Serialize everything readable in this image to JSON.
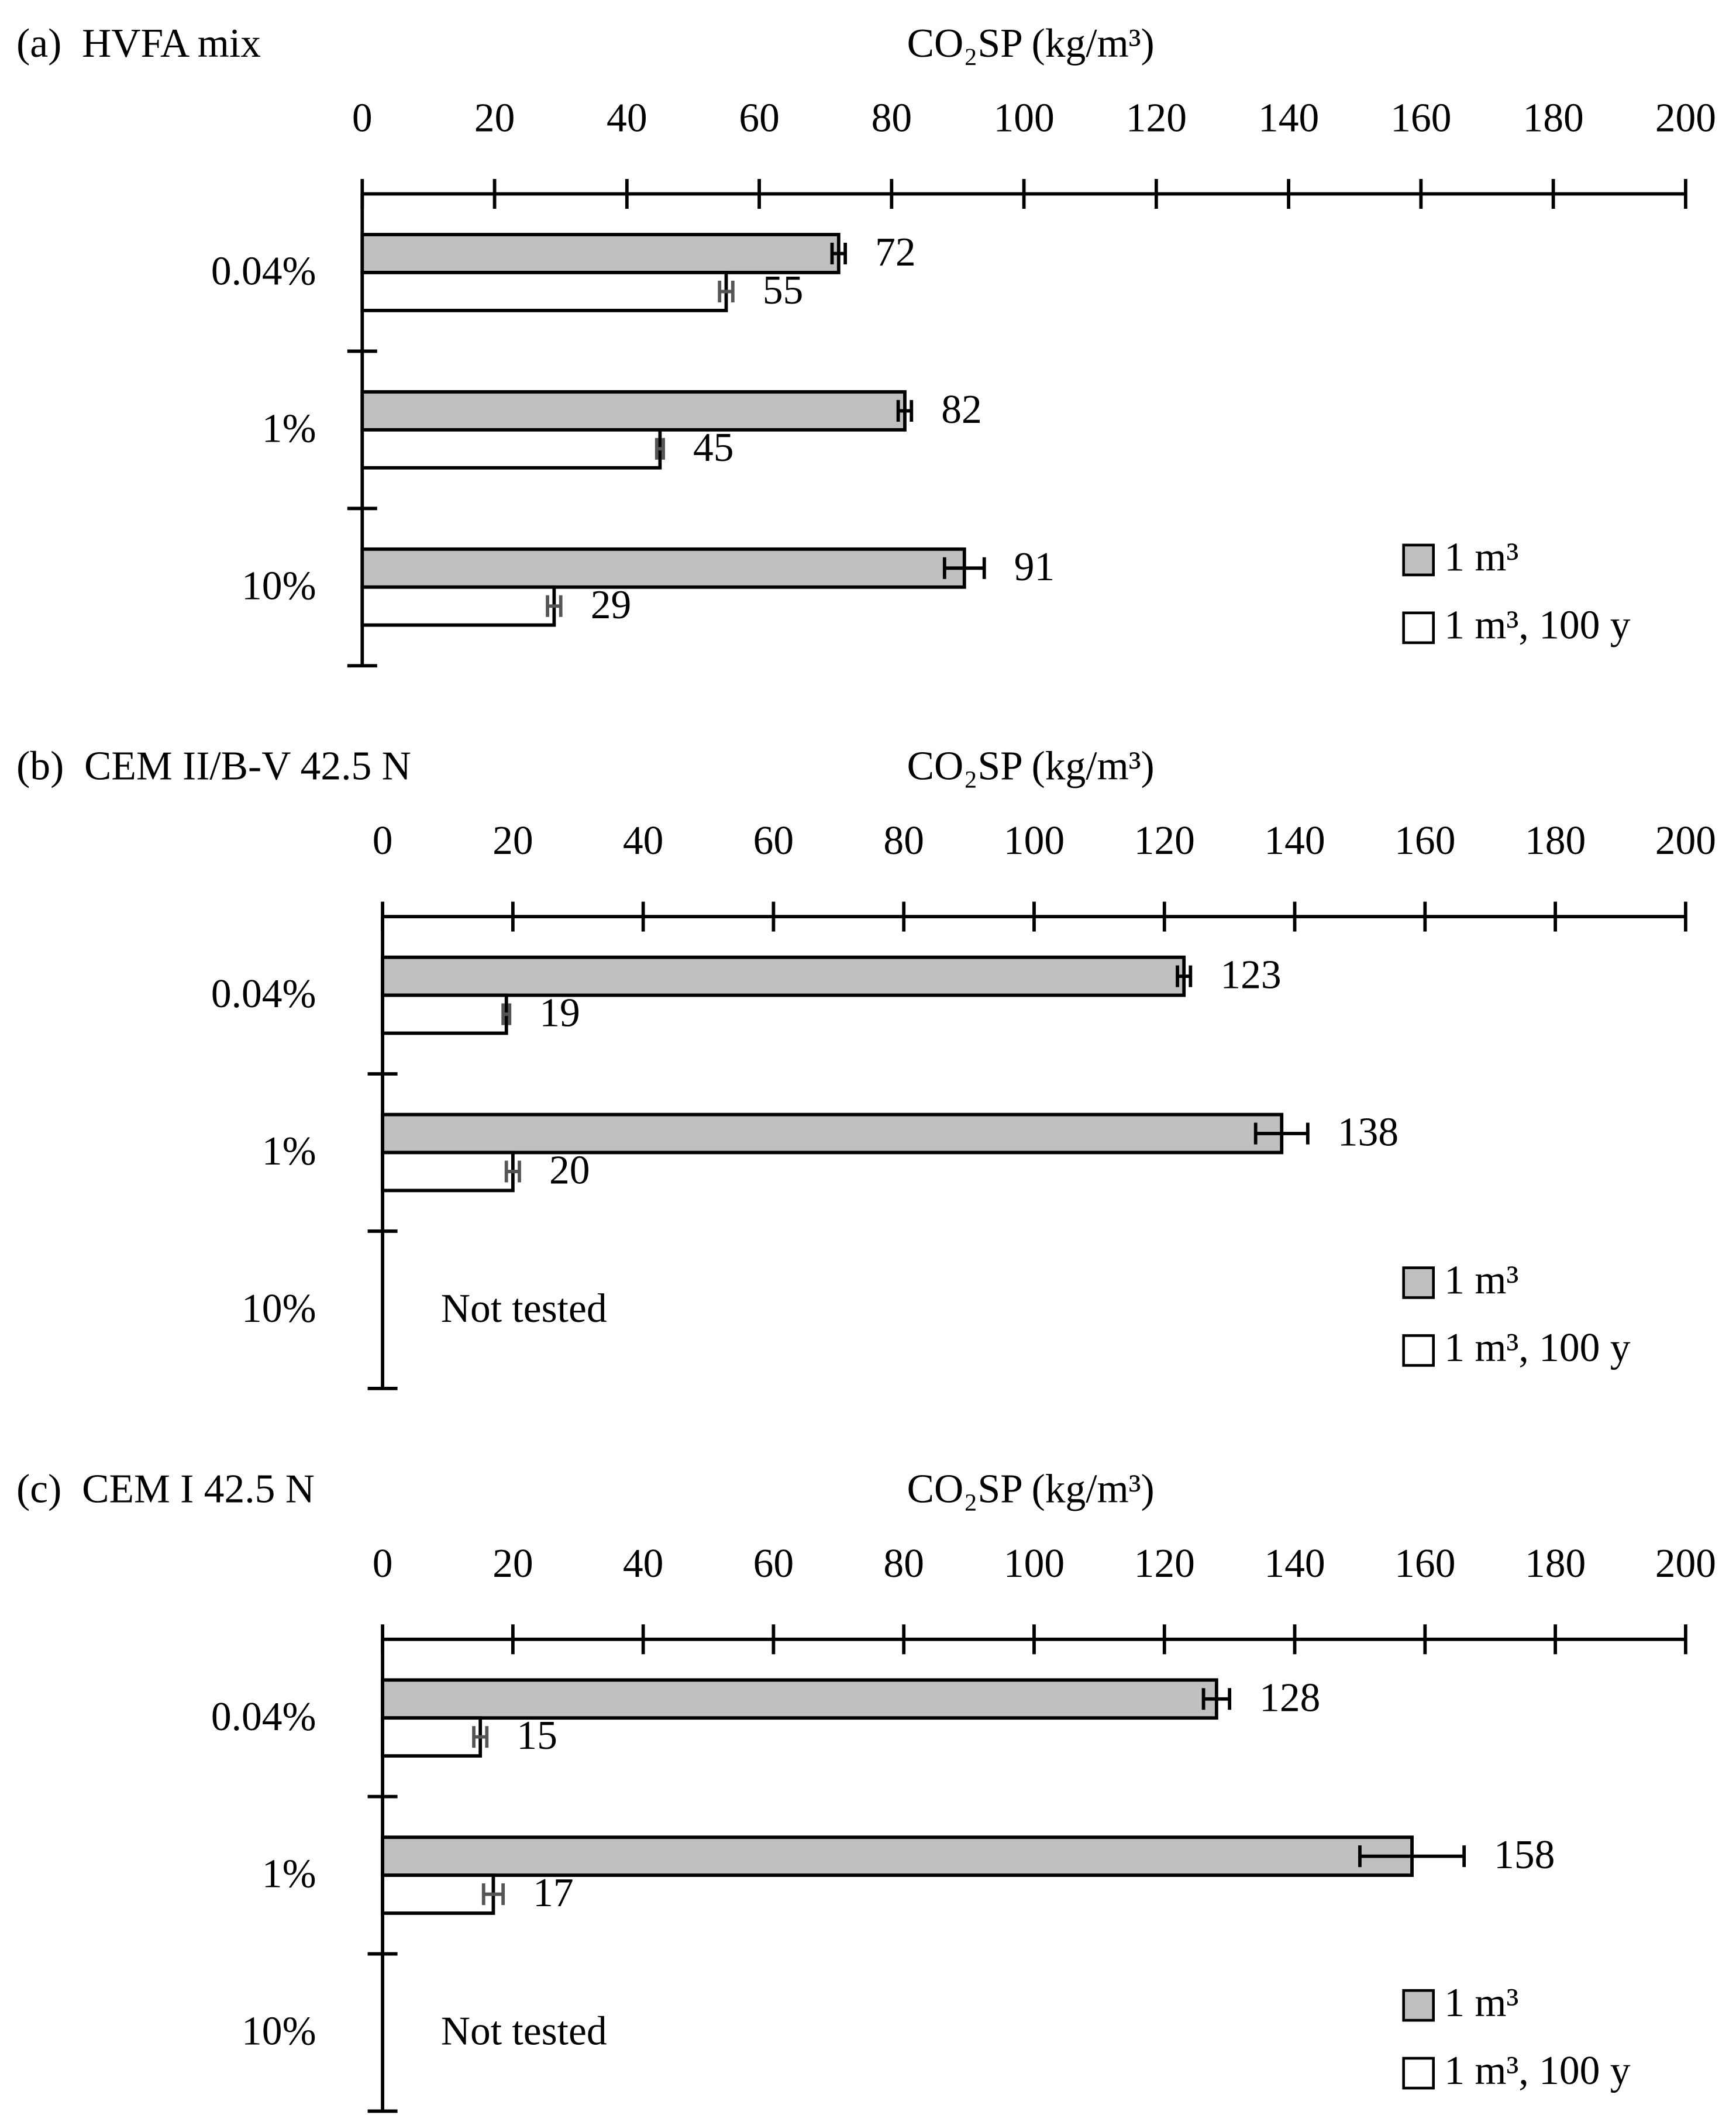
{
  "chart_data": [
    {
      "type": "bar",
      "title": "(a)  HVFA mix",
      "x_label": "CO₂SP (kg/m³)",
      "categories": [
        "0.04%",
        "1%",
        "10%"
      ],
      "series": [
        {
          "name": "1 m³",
          "color": "#c0c0c0",
          "values": [
            72,
            82,
            91
          ],
          "errors": [
            1,
            1,
            3
          ]
        },
        {
          "name": "1 m³, 100 y",
          "color": "#ffffff",
          "values": [
            55,
            45,
            29
          ],
          "errors": [
            1,
            0.5,
            1
          ]
        }
      ],
      "xlim": [
        0,
        200
      ],
      "xticks": [
        0,
        20,
        40,
        60,
        80,
        100,
        120,
        140,
        160,
        180,
        200
      ]
    },
    {
      "type": "bar",
      "title": "(b)  CEM II/B-V 42.5 N",
      "x_label": "CO₂SP (kg/m³)",
      "categories": [
        "0.04%",
        "1%",
        "10%"
      ],
      "series": [
        {
          "name": "1 m³",
          "color": "#c0c0c0",
          "values": [
            123,
            138,
            null
          ],
          "errors": [
            1,
            4,
            null
          ]
        },
        {
          "name": "1 m³, 100 y",
          "color": "#ffffff",
          "values": [
            19,
            20,
            null
          ],
          "errors": [
            0.5,
            1,
            null
          ]
        }
      ],
      "annotation": "Not tested",
      "xlim": [
        0,
        200
      ],
      "xticks": [
        0,
        20,
        40,
        60,
        80,
        100,
        120,
        140,
        160,
        180,
        200
      ]
    },
    {
      "type": "bar",
      "title": "(c)  CEM I 42.5 N",
      "x_label": "CO₂SP (kg/m³)",
      "categories": [
        "0.04%",
        "1%",
        "10%"
      ],
      "series": [
        {
          "name": "1 m³",
          "color": "#c0c0c0",
          "values": [
            128,
            158,
            null
          ],
          "errors": [
            2,
            8,
            null
          ]
        },
        {
          "name": "1 m³, 100 y",
          "color": "#ffffff",
          "values": [
            15,
            17,
            null
          ],
          "errors": [
            1,
            1.5,
            null
          ]
        }
      ],
      "annotation": "Not tested",
      "xlim": [
        0,
        200
      ],
      "xticks": [
        0,
        20,
        40,
        60,
        80,
        100,
        120,
        140,
        160,
        180,
        200
      ]
    }
  ]
}
